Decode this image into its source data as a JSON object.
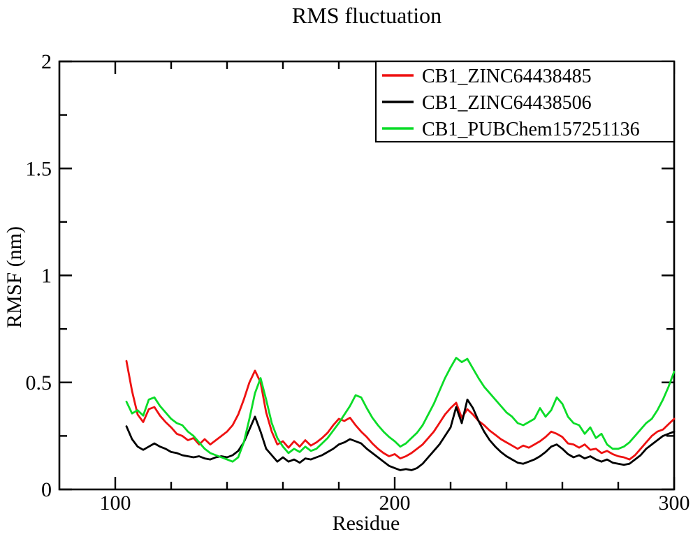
{
  "figure": {
    "background_color": "#ffffff",
    "frame_color": "#000000"
  },
  "chart_data": {
    "type": "line",
    "title": "RMS fluctuation",
    "xlabel": "Residue",
    "ylabel": "RMSF (nm)",
    "xlim": [
      80,
      300
    ],
    "ylim": [
      0,
      2
    ],
    "grid": false,
    "legend_position": "top-right",
    "x_major_ticks": [
      100,
      200,
      300
    ],
    "x_major_tick_labels": [
      "100",
      "200",
      "300"
    ],
    "x_minor_ticks": [
      120,
      140,
      160,
      180,
      220,
      240,
      260,
      280
    ],
    "y_major_ticks": [
      0,
      0.5,
      1,
      1.5,
      2
    ],
    "y_major_tick_labels": [
      "0",
      "0.5",
      "1",
      "1.5",
      "2"
    ],
    "y_minor_ticks": [
      0.25,
      0.75,
      1.25,
      1.75
    ],
    "x_start": 104,
    "x_step": 2,
    "series": [
      {
        "name": "CB1_ZINC64438485",
        "color": "#ee1111",
        "values": [
          0.6,
          0.46,
          0.35,
          0.315,
          0.375,
          0.385,
          0.345,
          0.315,
          0.29,
          0.26,
          0.25,
          0.23,
          0.24,
          0.21,
          0.235,
          0.21,
          0.23,
          0.25,
          0.27,
          0.3,
          0.35,
          0.42,
          0.5,
          0.555,
          0.5,
          0.36,
          0.27,
          0.21,
          0.225,
          0.195,
          0.225,
          0.2,
          0.23,
          0.205,
          0.22,
          0.24,
          0.265,
          0.3,
          0.33,
          0.32,
          0.335,
          0.3,
          0.27,
          0.245,
          0.215,
          0.19,
          0.17,
          0.155,
          0.165,
          0.145,
          0.155,
          0.17,
          0.19,
          0.21,
          0.24,
          0.27,
          0.31,
          0.35,
          0.38,
          0.405,
          0.335,
          0.375,
          0.35,
          0.32,
          0.3,
          0.275,
          0.255,
          0.235,
          0.22,
          0.205,
          0.19,
          0.205,
          0.195,
          0.21,
          0.225,
          0.245,
          0.27,
          0.26,
          0.245,
          0.215,
          0.21,
          0.195,
          0.21,
          0.185,
          0.19,
          0.17,
          0.18,
          0.165,
          0.155,
          0.15,
          0.14,
          0.16,
          0.19,
          0.22,
          0.25,
          0.27,
          0.28,
          0.305,
          0.33
        ]
      },
      {
        "name": "CB1_ZINC64438506",
        "color": "#000000",
        "values": [
          0.295,
          0.235,
          0.2,
          0.185,
          0.2,
          0.215,
          0.2,
          0.19,
          0.175,
          0.17,
          0.16,
          0.155,
          0.15,
          0.155,
          0.145,
          0.14,
          0.15,
          0.155,
          0.15,
          0.16,
          0.18,
          0.22,
          0.28,
          0.34,
          0.27,
          0.19,
          0.16,
          0.13,
          0.15,
          0.13,
          0.14,
          0.125,
          0.145,
          0.14,
          0.15,
          0.16,
          0.175,
          0.19,
          0.21,
          0.22,
          0.235,
          0.225,
          0.215,
          0.19,
          0.17,
          0.15,
          0.13,
          0.11,
          0.1,
          0.09,
          0.095,
          0.09,
          0.1,
          0.12,
          0.15,
          0.18,
          0.21,
          0.25,
          0.29,
          0.385,
          0.31,
          0.42,
          0.38,
          0.32,
          0.27,
          0.23,
          0.2,
          0.175,
          0.155,
          0.14,
          0.125,
          0.12,
          0.13,
          0.14,
          0.155,
          0.175,
          0.2,
          0.21,
          0.19,
          0.165,
          0.15,
          0.16,
          0.145,
          0.155,
          0.14,
          0.13,
          0.14,
          0.125,
          0.12,
          0.115,
          0.12,
          0.14,
          0.16,
          0.19,
          0.21,
          0.23,
          0.25,
          0.26,
          0.27
        ]
      },
      {
        "name": "CB1_PUBChem157251136",
        "color": "#0bdc28",
        "values": [
          0.41,
          0.355,
          0.37,
          0.345,
          0.42,
          0.43,
          0.39,
          0.36,
          0.33,
          0.31,
          0.3,
          0.27,
          0.25,
          0.22,
          0.19,
          0.17,
          0.16,
          0.15,
          0.14,
          0.13,
          0.15,
          0.22,
          0.33,
          0.45,
          0.52,
          0.42,
          0.31,
          0.24,
          0.2,
          0.17,
          0.19,
          0.175,
          0.2,
          0.18,
          0.19,
          0.215,
          0.24,
          0.275,
          0.31,
          0.35,
          0.39,
          0.44,
          0.43,
          0.38,
          0.335,
          0.3,
          0.27,
          0.245,
          0.225,
          0.2,
          0.215,
          0.24,
          0.265,
          0.3,
          0.35,
          0.4,
          0.46,
          0.52,
          0.57,
          0.615,
          0.595,
          0.61,
          0.565,
          0.52,
          0.48,
          0.45,
          0.42,
          0.39,
          0.36,
          0.34,
          0.31,
          0.3,
          0.315,
          0.33,
          0.38,
          0.34,
          0.37,
          0.43,
          0.4,
          0.34,
          0.31,
          0.3,
          0.26,
          0.29,
          0.24,
          0.26,
          0.21,
          0.19,
          0.19,
          0.2,
          0.22,
          0.25,
          0.28,
          0.31,
          0.33,
          0.37,
          0.42,
          0.48,
          0.55
        ]
      }
    ]
  }
}
